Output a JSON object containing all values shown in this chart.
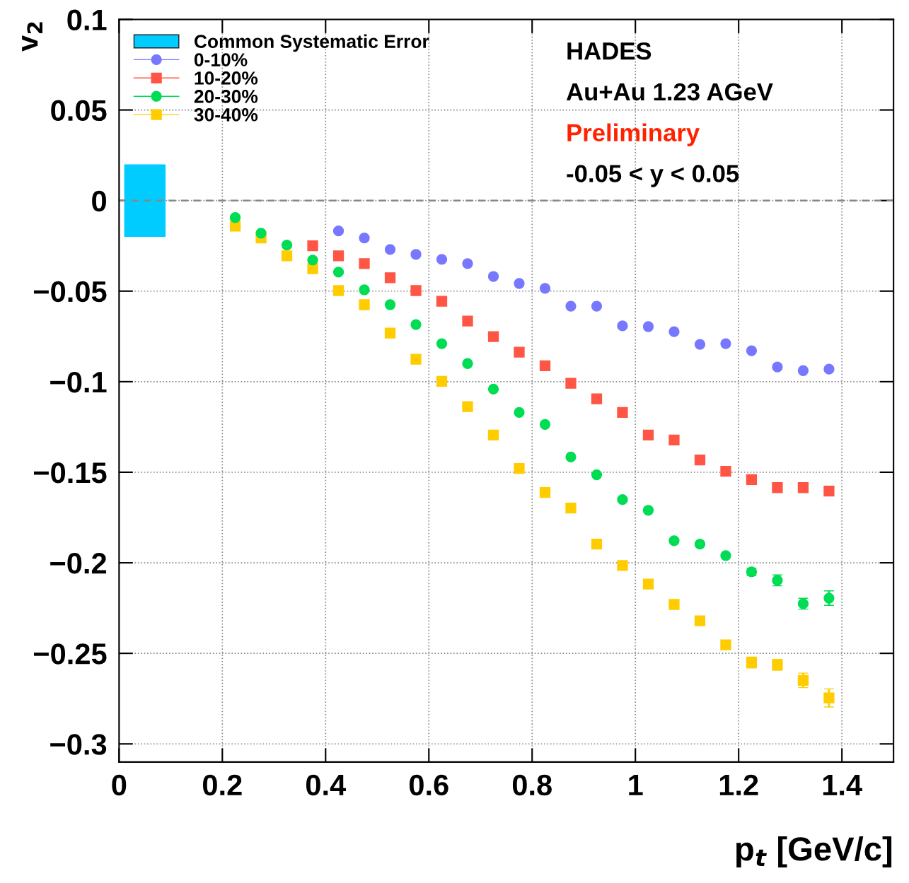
{
  "chart_data": {
    "type": "scatter",
    "xlabel": "p$_{t}$ [GeV/c]",
    "ylabel": "v$_{2}$",
    "xlim": [
      0,
      1.5
    ],
    "ylim": [
      -0.31,
      0.1
    ],
    "xticks": [
      0,
      0.2,
      0.4,
      0.6,
      0.8,
      1,
      1.2,
      1.4
    ],
    "yticks": [
      0.1,
      0.05,
      0,
      {
        "value": -0.05,
        "label": "−0.05"
      },
      {
        "value": -0.1,
        "label": "−0.1"
      },
      {
        "value": -0.15,
        "label": "−0.15"
      },
      {
        "value": -0.2,
        "label": "−0.2"
      },
      {
        "value": -0.25,
        "label": "−0.25"
      },
      {
        "value": -0.3,
        "label": "−0.3"
      }
    ],
    "grid": true,
    "legend": "top left",
    "ref_lines": [
      {
        "axis": "y",
        "value": 0,
        "color": "#888888",
        "line_style": "dashed"
      }
    ],
    "annotations": [
      "HADES",
      "Au+Au 1.23 AGeV",
      "Preliminary",
      "-0.05 < y < 0.05"
    ],
    "series": [
      {
        "name": "Common Systematic Error",
        "type": "bar",
        "color": "#00ccff",
        "x": [
          0.05
        ],
        "base": [
          -0.02
        ],
        "values": [
          0.04
        ]
      },
      {
        "name": "0-10%",
        "color": "#7777ff",
        "marker": "circle",
        "x": [
          0.425,
          0.475,
          0.525,
          0.575,
          0.625,
          0.675,
          0.725,
          0.775,
          0.825,
          0.875,
          0.925,
          0.975,
          1.025,
          1.075,
          1.125,
          1.175,
          1.225,
          1.275,
          1.325,
          1.375
        ],
        "values": [
          -0.0168,
          -0.0207,
          -0.027,
          -0.0297,
          -0.0325,
          -0.0348,
          -0.0419,
          -0.0458,
          -0.0485,
          -0.0583,
          -0.0583,
          -0.0692,
          -0.0696,
          -0.0724,
          -0.0794,
          -0.079,
          -0.0829,
          -0.0919,
          -0.0939,
          -0.0931
        ]
      },
      {
        "name": "10-20%",
        "color": "#ff5544",
        "marker": "square",
        "x": [
          0.375,
          0.425,
          0.475,
          0.525,
          0.575,
          0.625,
          0.675,
          0.725,
          0.775,
          0.825,
          0.875,
          0.925,
          0.975,
          1.025,
          1.075,
          1.125,
          1.175,
          1.225,
          1.275,
          1.325,
          1.375
        ],
        "values": [
          -0.025,
          -0.0305,
          -0.0348,
          -0.0426,
          -0.0497,
          -0.0556,
          -0.0665,
          -0.0751,
          -0.0837,
          -0.0912,
          -0.1009,
          -0.1095,
          -0.117,
          -0.1295,
          -0.1322,
          -0.1432,
          -0.1495,
          -0.1541,
          -0.1585,
          -0.1585,
          -0.1604
        ],
        "errors": [
          null,
          null,
          null,
          null,
          null,
          null,
          null,
          null,
          null,
          null,
          null,
          null,
          null,
          null,
          null,
          null,
          null,
          null,
          null,
          null,
          0.002
        ]
      },
      {
        "name": "20-30%",
        "color": "#00dd55",
        "marker": "circle",
        "x": [
          0.225,
          0.275,
          0.325,
          0.375,
          0.425,
          0.475,
          0.525,
          0.575,
          0.625,
          0.675,
          0.725,
          0.775,
          0.825,
          0.875,
          0.925,
          0.975,
          1.025,
          1.075,
          1.125,
          1.175,
          1.225,
          1.275,
          1.325,
          1.375
        ],
        "values": [
          -0.0094,
          -0.018,
          -0.0246,
          -0.0329,
          -0.0395,
          -0.0493,
          -0.0575,
          -0.0685,
          -0.079,
          -0.09,
          -0.1041,
          -0.117,
          -0.1236,
          -0.1416,
          -0.1514,
          -0.1651,
          -0.171,
          -0.1878,
          -0.1897,
          -0.196,
          -0.205,
          -0.2097,
          -0.2226,
          -0.2195
        ],
        "errors": [
          null,
          null,
          null,
          null,
          null,
          null,
          null,
          null,
          null,
          null,
          null,
          null,
          null,
          null,
          null,
          null,
          null,
          null,
          null,
          null,
          0.002,
          0.003,
          0.003,
          0.004
        ]
      },
      {
        "name": "30-40%",
        "color": "#ffcc00",
        "marker": "square",
        "x": [
          0.225,
          0.275,
          0.325,
          0.375,
          0.425,
          0.475,
          0.525,
          0.575,
          0.625,
          0.675,
          0.725,
          0.775,
          0.825,
          0.875,
          0.925,
          0.975,
          1.025,
          1.075,
          1.125,
          1.175,
          1.225,
          1.275,
          1.325,
          1.375
        ],
        "values": [
          -0.0141,
          -0.0207,
          -0.0305,
          -0.0376,
          -0.0497,
          -0.0575,
          -0.0732,
          -0.0876,
          -0.0998,
          -0.1138,
          -0.1295,
          -0.1479,
          -0.1612,
          -0.1698,
          -0.1897,
          -0.2015,
          -0.2117,
          -0.223,
          -0.232,
          -0.2453,
          -0.2551,
          -0.2563,
          -0.2649,
          -0.2746
        ],
        "errors": [
          null,
          null,
          null,
          null,
          null,
          null,
          null,
          null,
          null,
          null,
          null,
          null,
          null,
          null,
          null,
          null,
          null,
          null,
          null,
          null,
          0.003,
          0.003,
          0.004,
          0.005
        ]
      }
    ]
  }
}
